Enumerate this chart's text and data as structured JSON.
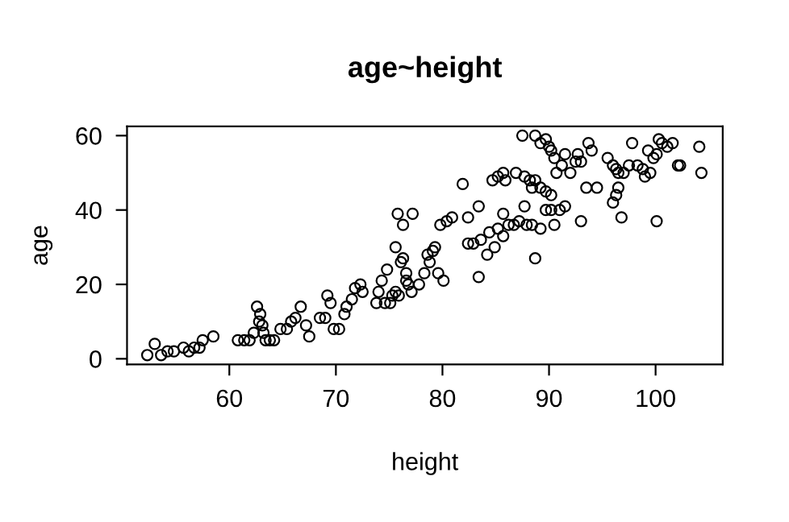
{
  "chart_data": {
    "type": "scatter",
    "title": "age~height",
    "xlabel": "height",
    "ylabel": "age",
    "xlim": [
      50.4,
      106.3
    ],
    "ylim": [
      -1.5,
      62.5
    ],
    "xticks": [
      60,
      70,
      80,
      90,
      100
    ],
    "yticks": [
      0,
      20,
      40,
      60
    ],
    "marker": "circle",
    "grid": false,
    "legend": false,
    "series": [
      {
        "color": "#000000",
        "x": [
          52.3,
          53,
          53.6,
          54.2,
          54.8,
          55.7,
          56.2,
          56.7,
          57.2,
          57.5,
          58.5,
          60.8,
          61.4,
          61.9,
          62.3,
          62.6,
          62.9,
          63.1,
          63.4,
          63.8,
          64.2,
          64.8,
          65.4,
          65.8,
          62.8,
          63.2,
          66.2,
          66.7,
          67.2,
          67.5,
          68.5,
          69,
          69.2,
          69.5,
          69.8,
          70.3,
          70.8,
          71,
          71.5,
          71.8,
          72.3,
          72.5,
          73.8,
          74,
          74.3,
          74.8,
          75.1,
          75.6,
          75.9,
          76.1,
          76.3,
          76.6,
          76.6,
          76.8,
          77.1,
          77.8,
          78.3,
          78.6,
          78.8,
          79.1,
          79.3,
          79.6,
          80.1,
          75.6,
          75.8,
          76.3,
          77.2,
          79.8,
          80.4,
          80.9,
          81.9,
          82.4,
          82.4,
          82.9,
          83.4,
          83.4,
          83.6,
          84.2,
          84.4,
          84.9,
          85.2,
          85.7,
          85.7,
          86.2,
          86.7,
          84.7,
          85.2,
          85.7,
          85.9,
          86.9,
          74.6,
          75.3,
          87.5,
          88.7,
          89.2,
          89.7,
          90,
          90.2,
          90.5,
          90.7,
          91.2,
          91.5,
          92,
          92.5,
          92.7,
          93,
          93.7,
          94,
          95.5,
          96,
          96.3,
          96.5,
          97,
          97.5,
          97.8,
          98.3,
          98.8,
          99,
          99.3,
          99.5,
          99.8,
          100.1,
          100.3,
          100.6,
          101.1,
          101.6,
          102.1,
          102.3,
          104.1,
          104.3,
          87.7,
          88.2,
          88.4,
          88.7,
          89.2,
          89.7,
          90.2,
          87.7,
          87.2,
          87.9,
          88.4,
          89.2,
          89.7,
          90.2,
          91,
          90.5,
          91.5,
          93,
          93.5,
          94.5,
          96,
          96.3,
          96.5,
          96.8,
          100.1,
          88.7
        ],
        "values": [
          1,
          4,
          1,
          2,
          2,
          3,
          2,
          3,
          3,
          5,
          6,
          5,
          5,
          5,
          7,
          14,
          12,
          9,
          5,
          5,
          5,
          8,
          8,
          10,
          10,
          7,
          11,
          14,
          9,
          6,
          11,
          11,
          17,
          15,
          8,
          8,
          12,
          14,
          16,
          19,
          20,
          18,
          15,
          18,
          21,
          24,
          15,
          18,
          17,
          26,
          27,
          21,
          23,
          20,
          18,
          20,
          23,
          28,
          26,
          29,
          30,
          23,
          21,
          30,
          39,
          36,
          39,
          36,
          37,
          38,
          47,
          38,
          31,
          31,
          41,
          22,
          32,
          28,
          34,
          30,
          35,
          39,
          33,
          36,
          36,
          48,
          49,
          50,
          48,
          50,
          15,
          17,
          60,
          60,
          58,
          59,
          57,
          56,
          54,
          50,
          52,
          55,
          50,
          53,
          55,
          53,
          58,
          56,
          54,
          52,
          51,
          50,
          50,
          52,
          58,
          52,
          51,
          49,
          56,
          50,
          54,
          55,
          59,
          58,
          57,
          58,
          52,
          52,
          57,
          50,
          49,
          48,
          46,
          48,
          46,
          45,
          44,
          41,
          37,
          36,
          36,
          35,
          40,
          40,
          40,
          36,
          41,
          37,
          46,
          46,
          42,
          44,
          46,
          38,
          37,
          27
        ]
      }
    ]
  }
}
